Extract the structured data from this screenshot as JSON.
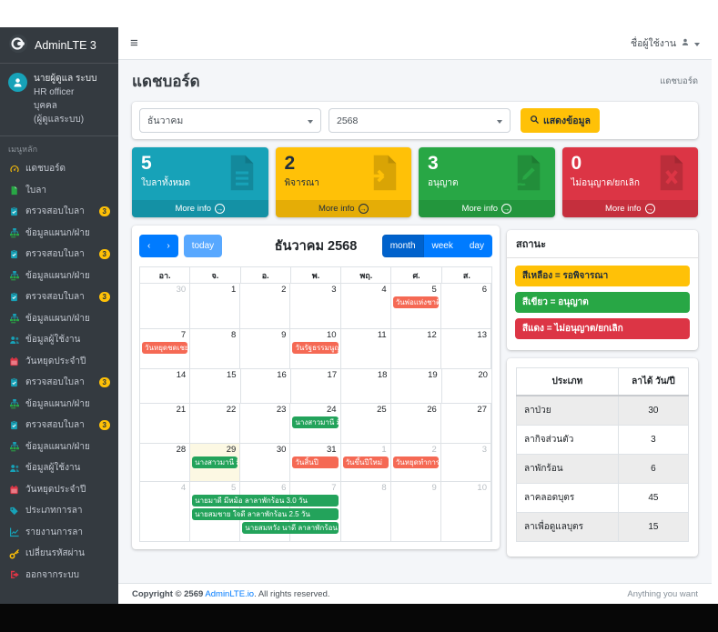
{
  "navbar": {
    "hamburger": "≡",
    "user_label": "ชื่อผู้ใช้งาน"
  },
  "sidebar": {
    "brand": "AdminLTE 3",
    "user": {
      "name": "นายผู้ดูแล ระบบ",
      "role": "HR officer",
      "dept": "บุคคล",
      "note": "(ผู้ดูแลระบบ)"
    },
    "menu_header": "เมนูหลัก",
    "items": [
      {
        "label": "แดชบอร์ด",
        "icon": "gauge-icon",
        "color": "#ffc107"
      },
      {
        "label": "ใบลา",
        "icon": "file-icon",
        "color": "#28a745"
      },
      {
        "label": "ตรวจสอบใบลา",
        "icon": "clipboard-check-icon",
        "color": "#17a2b8",
        "badge": "3"
      },
      {
        "label": "ข้อมูลแผนก/ฝ่าย",
        "icon": "sitemap-icon",
        "color": "#17a2b8"
      },
      {
        "label": "ตรวจสอบใบลา",
        "icon": "clipboard-check-icon",
        "color": "#17a2b8",
        "badge": "3"
      },
      {
        "label": "ข้อมูลแผนก/ฝ่าย",
        "icon": "sitemap-icon",
        "color": "#17a2b8"
      },
      {
        "label": "ตรวจสอบใบลา",
        "icon": "clipboard-check-icon",
        "color": "#17a2b8",
        "badge": "3"
      },
      {
        "label": "ข้อมูลแผนก/ฝ่าย",
        "icon": "sitemap-icon",
        "color": "#17a2b8"
      },
      {
        "label": "ข้อมูลผู้ใช้งาน",
        "icon": "users-icon",
        "color": "#17a2b8"
      },
      {
        "label": "วันหยุดประจำปี",
        "icon": "calendar-icon",
        "color": "#dc3545"
      },
      {
        "label": "ตรวจสอบใบลา",
        "icon": "clipboard-check-icon",
        "color": "#17a2b8",
        "badge": "3"
      },
      {
        "label": "ข้อมูลแผนก/ฝ่าย",
        "icon": "sitemap-icon",
        "color": "#17a2b8"
      },
      {
        "label": "ตรวจสอบใบลา",
        "icon": "clipboard-check-icon",
        "color": "#17a2b8",
        "badge": "3"
      },
      {
        "label": "ข้อมูลแผนก/ฝ่าย",
        "icon": "sitemap-icon",
        "color": "#17a2b8"
      },
      {
        "label": "ข้อมูลผู้ใช้งาน",
        "icon": "users-icon",
        "color": "#17a2b8"
      },
      {
        "label": "วันหยุดประจำปี",
        "icon": "calendar-icon",
        "color": "#dc3545"
      },
      {
        "label": "ประเภทการลา",
        "icon": "tag-icon",
        "color": "#17a2b8"
      },
      {
        "label": "รายงานการลา",
        "icon": "chart-line-icon",
        "color": "#17a2b8"
      },
      {
        "label": "เปลี่ยนรหัสผ่าน",
        "icon": "key-icon",
        "color": "#ffc107"
      },
      {
        "label": "ออกจากระบบ",
        "icon": "sign-out-icon",
        "color": "#dc3545"
      }
    ]
  },
  "page": {
    "title": "แดชบอร์ด",
    "breadcrumb": "แดชบอร์ด"
  },
  "filters": {
    "month": "ธันวาคม",
    "year": "2568",
    "submit_label": "แสดงข้อมูล"
  },
  "stat_boxes": [
    {
      "value": "5",
      "label": "ใบลาทั้งหมด",
      "more_label": "More info",
      "color": "#17a2b8",
      "text": "light",
      "icon": "file-lines-icon"
    },
    {
      "value": "2",
      "label": "พิจารณา",
      "more_label": "More info",
      "color": "#ffc107",
      "text": "dark",
      "icon": "file-export-icon"
    },
    {
      "value": "3",
      "label": "อนุญาต",
      "more_label": "More info",
      "color": "#28a745",
      "text": "light",
      "icon": "file-signature-icon"
    },
    {
      "value": "0",
      "label": "ไม่อนุญาต/ยกเลิก",
      "more_label": "More info",
      "color": "#dc3545",
      "text": "light",
      "icon": "file-excel-icon"
    }
  ],
  "calendar": {
    "title": "ธันวาคม 2568",
    "nav": {
      "prev": "‹",
      "next": "›",
      "today": "today",
      "month": "month",
      "week": "week",
      "day": "day",
      "active_view": "month"
    },
    "day_headers": [
      "อา.",
      "จ.",
      "อ.",
      "พ.",
      "พฤ.",
      "ศ.",
      "ส."
    ],
    "event_colors": {
      "holiday": "#f56954",
      "leave": "#23a35b"
    },
    "weeks": [
      {
        "days": [
          {
            "n": "30",
            "muted": true
          },
          {
            "n": "1"
          },
          {
            "n": "2"
          },
          {
            "n": "3"
          },
          {
            "n": "4"
          },
          {
            "n": "5"
          },
          {
            "n": "6"
          }
        ],
        "events": [
          {
            "col": 5,
            "span": 1,
            "stack": 0,
            "type": "holiday",
            "label": "วันพ่อแห่งชาติ และ"
          }
        ]
      },
      {
        "days": [
          {
            "n": "7"
          },
          {
            "n": "8"
          },
          {
            "n": "9"
          },
          {
            "n": "10"
          },
          {
            "n": "11"
          },
          {
            "n": "12"
          },
          {
            "n": "13"
          }
        ],
        "events": [
          {
            "col": 0,
            "span": 1,
            "stack": 0,
            "type": "holiday",
            "label": "วันหยุดชดเชย/วันพ่"
          },
          {
            "col": 3,
            "span": 1,
            "stack": 0,
            "type": "holiday",
            "label": "วันรัฐธรรมนูญ"
          }
        ]
      },
      {
        "days": [
          {
            "n": "14"
          },
          {
            "n": "15"
          },
          {
            "n": "16"
          },
          {
            "n": "17"
          },
          {
            "n": "18"
          },
          {
            "n": "19"
          },
          {
            "n": "20"
          }
        ],
        "events": []
      },
      {
        "days": [
          {
            "n": "21"
          },
          {
            "n": "22"
          },
          {
            "n": "23"
          },
          {
            "n": "24"
          },
          {
            "n": "25"
          },
          {
            "n": "26"
          },
          {
            "n": "27"
          }
        ],
        "events": [
          {
            "col": 3,
            "span": 1,
            "stack": 0,
            "type": "leave",
            "label": "นางสาวมานี มีนา ล"
          }
        ]
      },
      {
        "days": [
          {
            "n": "28"
          },
          {
            "n": "29",
            "today": true
          },
          {
            "n": "30"
          },
          {
            "n": "31"
          },
          {
            "n": "1",
            "muted": true
          },
          {
            "n": "2",
            "muted": true
          },
          {
            "n": "3",
            "muted": true
          }
        ],
        "events": [
          {
            "col": 1,
            "span": 1,
            "stack": 0,
            "type": "leave",
            "label": "นางสาวมานี มีนา ล"
          },
          {
            "col": 3,
            "span": 1,
            "stack": 0,
            "type": "holiday",
            "label": "วันสิ้นปี"
          },
          {
            "col": 4,
            "span": 1,
            "stack": 0,
            "type": "holiday",
            "label": "วันขึ้นปีใหม่"
          },
          {
            "col": 5,
            "span": 1,
            "stack": 0,
            "type": "holiday",
            "label": "วันหยุดทำการเพิ่ม"
          }
        ]
      },
      {
        "days": [
          {
            "n": "4",
            "muted": true
          },
          {
            "n": "5",
            "muted": true
          },
          {
            "n": "6",
            "muted": true
          },
          {
            "n": "7",
            "muted": true
          },
          {
            "n": "8",
            "muted": true
          },
          {
            "n": "9",
            "muted": true
          },
          {
            "n": "10",
            "muted": true
          }
        ],
        "events": [
          {
            "col": 1,
            "span": 3,
            "stack": 0,
            "type": "leave",
            "label": "นายมาดี มีหม้อ ลาลาพักร้อน 3.0 วัน"
          },
          {
            "col": 1,
            "span": 3,
            "stack": 1,
            "type": "leave",
            "label": "นายสมชาย ใจดี ลาลาพักร้อน 2.5 วัน"
          },
          {
            "col": 2,
            "span": 2,
            "stack": 2,
            "type": "leave",
            "label": "นายสมหวัง นาดี ลาลาพักร้อน 2.0 วัน"
          }
        ]
      }
    ]
  },
  "status_panel": {
    "title": "สถานะ",
    "items": [
      {
        "label": "สีเหลือง = รอพิจารณา",
        "color": "#ffc107",
        "text_dark": true
      },
      {
        "label": "สีเขียว = อนุญาต",
        "color": "#28a745",
        "text_dark": false
      },
      {
        "label": "สีแดง = ไม่อนุญาต/ยกเลิก",
        "color": "#dc3545",
        "text_dark": false
      }
    ]
  },
  "leave_table": {
    "col_type": "ประเภท",
    "col_days": "ลาได้ วัน/ปี",
    "rows": [
      {
        "type": "ลาป่วย",
        "days": "30"
      },
      {
        "type": "ลากิจส่วนตัว",
        "days": "3"
      },
      {
        "type": "ลาพักร้อน",
        "days": "6"
      },
      {
        "type": "ลาคลอดบุตร",
        "days": "45"
      },
      {
        "type": "ลาเพื่อดูแลบุตร",
        "days": "15"
      }
    ]
  },
  "footer": {
    "copyright_prefix": "Copyright © 2569",
    "brand_link": "AdminLTE.io",
    "copyright_suffix": ". All rights reserved.",
    "right_text": "Anything you want"
  }
}
